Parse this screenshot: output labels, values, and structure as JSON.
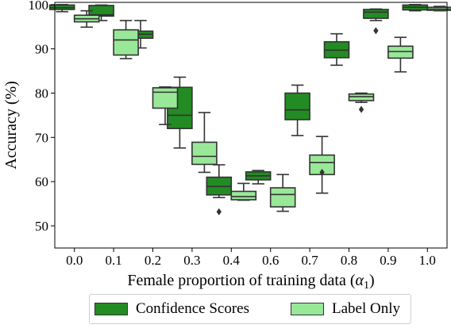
{
  "chart_data": {
    "type": "box",
    "title": "",
    "xlabel": "Female proportion of training data (",
    "xlabel_symbol": "α",
    "xlabel_subscript": "1",
    "xlabel_close": ")",
    "ylabel": "Accuracy (%)",
    "ylim": [
      45,
      100.5
    ],
    "yticks": [
      50,
      60,
      70,
      80,
      90,
      100
    ],
    "categories": [
      "0.0",
      "0.1",
      "0.2",
      "0.3",
      "0.4",
      "0.6",
      "0.7",
      "0.8",
      "0.9",
      "1.0"
    ],
    "legend_position": "bottom-center",
    "series": [
      {
        "name": "Confidence Scores",
        "color": "#238b23",
        "boxes": [
          {
            "q1": 98.9,
            "median": 99.3,
            "q3": 99.9,
            "whislo": 98.4,
            "whishi": 100.0,
            "fliers": []
          },
          {
            "q1": 97.4,
            "median": 97.7,
            "q3": 99.8,
            "whislo": 96.4,
            "whishi": 99.9,
            "fliers": []
          },
          {
            "q1": 92.4,
            "median": 93.3,
            "q3": 94.0,
            "whislo": 90.2,
            "whishi": 96.4,
            "fliers": []
          },
          {
            "q1": 72.0,
            "median": 75.0,
            "q3": 81.3,
            "whislo": 67.6,
            "whishi": 83.6,
            "fliers": []
          },
          {
            "q1": 57.0,
            "median": 58.9,
            "q3": 61.0,
            "whislo": 56.4,
            "whishi": 63.8,
            "fliers": [
              53.2
            ]
          },
          {
            "q1": 60.4,
            "median": 61.3,
            "q3": 62.2,
            "whislo": 59.5,
            "whishi": 62.5,
            "fliers": []
          },
          {
            "q1": 74.0,
            "median": 76.2,
            "q3": 80.0,
            "whislo": 70.4,
            "whishi": 81.8,
            "fliers": []
          },
          {
            "q1": 88.0,
            "median": 89.7,
            "q3": 91.6,
            "whislo": 86.3,
            "whishi": 93.4,
            "fliers": []
          },
          {
            "q1": 96.9,
            "median": 98.3,
            "q3": 98.9,
            "whislo": 96.4,
            "whishi": 99.0,
            "fliers": [
              94.1
            ]
          },
          {
            "q1": 98.8,
            "median": 99.4,
            "q3": 99.9,
            "whislo": 98.6,
            "whishi": 100.0,
            "fliers": []
          }
        ]
      },
      {
        "name": "Label Only",
        "color": "#98e898",
        "boxes": [
          {
            "q1": 96.1,
            "median": 96.8,
            "q3": 97.6,
            "whislo": 94.9,
            "whishi": 98.6,
            "fliers": []
          },
          {
            "q1": 88.6,
            "median": 92.0,
            "q3": 94.3,
            "whislo": 87.8,
            "whishi": 96.4,
            "fliers": []
          },
          {
            "q1": 76.6,
            "median": 80.2,
            "q3": 81.2,
            "whislo": 72.9,
            "whishi": 81.4,
            "fliers": []
          },
          {
            "q1": 63.9,
            "median": 65.7,
            "q3": 68.9,
            "whislo": 62.1,
            "whishi": 75.6,
            "fliers": []
          },
          {
            "q1": 55.9,
            "median": 56.6,
            "q3": 57.8,
            "whislo": 55.8,
            "whishi": 59.6,
            "fliers": []
          },
          {
            "q1": 54.3,
            "median": 57.1,
            "q3": 58.6,
            "whislo": 53.3,
            "whishi": 61.6,
            "fliers": []
          },
          {
            "q1": 61.6,
            "median": 64.3,
            "q3": 66.0,
            "whislo": 57.4,
            "whishi": 70.2,
            "fliers": [
              62.1
            ]
          },
          {
            "q1": 78.3,
            "median": 79.2,
            "q3": 79.8,
            "whislo": 77.9,
            "whishi": 80.0,
            "fliers": [
              76.3
            ]
          },
          {
            "q1": 87.9,
            "median": 89.4,
            "q3": 90.6,
            "whislo": 84.8,
            "whishi": 92.6,
            "fliers": []
          },
          {
            "q1": 98.7,
            "median": 99.0,
            "q3": 99.4,
            "whislo": 98.6,
            "whishi": 99.6,
            "fliers": []
          }
        ]
      }
    ]
  }
}
